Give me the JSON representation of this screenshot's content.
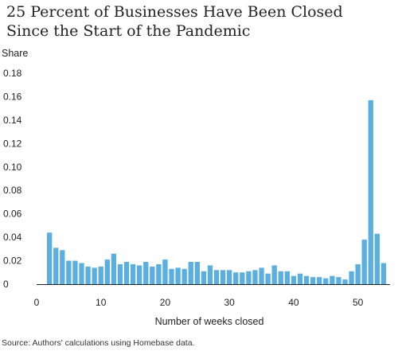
{
  "chart_data": {
    "type": "bar",
    "title": "25 Percent of Businesses Have Been Closed Since the Start of the Pandemic",
    "ylabel": "Share",
    "xlabel": "Number of weeks closed",
    "source": "Source: Authors' calculations using Homebase data.",
    "xlim": [
      0,
      55
    ],
    "ylim": [
      0,
      0.18
    ],
    "xticks": [
      0,
      10,
      20,
      30,
      40,
      50
    ],
    "yticks": [
      "0",
      "0.02",
      "0.04",
      "0.06",
      "0.08",
      "0.10",
      "0.12",
      "0.14",
      "0.16",
      "0.18"
    ],
    "bar_color": "#5aaee0",
    "x": [
      2,
      3,
      4,
      5,
      6,
      7,
      8,
      9,
      10,
      11,
      12,
      13,
      14,
      15,
      16,
      17,
      18,
      19,
      20,
      21,
      22,
      23,
      24,
      25,
      26,
      27,
      28,
      29,
      30,
      31,
      32,
      33,
      34,
      35,
      36,
      37,
      38,
      39,
      40,
      41,
      42,
      43,
      44,
      45,
      46,
      47,
      48,
      49,
      50,
      51,
      52,
      53,
      54
    ],
    "values": [
      0.044,
      0.031,
      0.029,
      0.02,
      0.02,
      0.018,
      0.015,
      0.014,
      0.015,
      0.021,
      0.026,
      0.017,
      0.019,
      0.017,
      0.016,
      0.019,
      0.015,
      0.017,
      0.021,
      0.013,
      0.014,
      0.013,
      0.019,
      0.019,
      0.011,
      0.016,
      0.012,
      0.012,
      0.012,
      0.01,
      0.01,
      0.011,
      0.012,
      0.014,
      0.009,
      0.016,
      0.011,
      0.011,
      0.007,
      0.009,
      0.007,
      0.006,
      0.006,
      0.005,
      0.007,
      0.006,
      0.004,
      0.011,
      0.017,
      0.038,
      0.157,
      0.043,
      0.018
    ]
  }
}
